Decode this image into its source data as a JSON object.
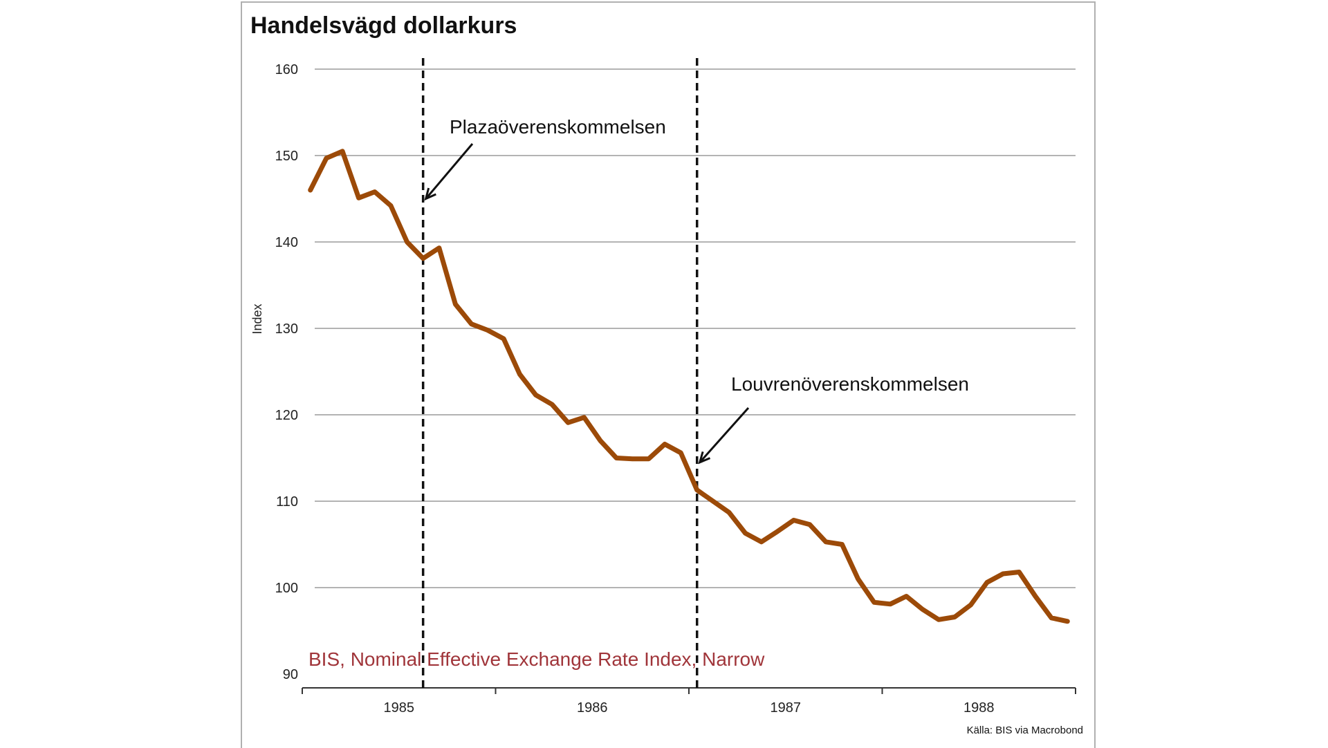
{
  "chart_data": {
    "type": "line",
    "title": "Handelsvägd dollarkurs",
    "ylabel": "Index",
    "xlabel": "",
    "ylim": [
      90,
      160
    ],
    "yticks": [
      90,
      100,
      110,
      120,
      130,
      140,
      150,
      160
    ],
    "xlim": [
      1985.0,
      1989.0
    ],
    "x_tick_labels": [
      "1985",
      "1986",
      "1987",
      "1988"
    ],
    "grid": true,
    "series": [
      {
        "name": "BIS, Nominal Effective Exchange Rate Index, Narrow",
        "color": "#9c4a08",
        "x": [
          1985.042,
          1985.125,
          1985.208,
          1985.292,
          1985.375,
          1985.458,
          1985.542,
          1985.625,
          1985.708,
          1985.792,
          1985.875,
          1985.958,
          1986.042,
          1986.125,
          1986.208,
          1986.292,
          1986.375,
          1986.458,
          1986.542,
          1986.625,
          1986.708,
          1986.792,
          1986.875,
          1986.958,
          1987.042,
          1987.125,
          1987.208,
          1987.292,
          1987.375,
          1987.458,
          1987.542,
          1987.625,
          1987.708,
          1987.792,
          1987.875,
          1987.958,
          1988.042,
          1988.125,
          1988.208,
          1988.292,
          1988.375,
          1988.458,
          1988.542,
          1988.625,
          1988.708,
          1988.792,
          1988.875,
          1988.958
        ],
        "values": [
          146.0,
          149.7,
          150.5,
          145.1,
          145.8,
          144.2,
          140.0,
          138.1,
          139.3,
          132.8,
          130.5,
          129.8,
          128.8,
          124.7,
          122.3,
          121.2,
          119.1,
          119.7,
          117.0,
          115.0,
          114.9,
          114.9,
          116.6,
          115.6,
          111.3,
          110.0,
          108.7,
          106.3,
          105.3,
          106.5,
          107.8,
          107.3,
          105.3,
          105.0,
          101.0,
          98.3,
          98.1,
          99.0,
          97.5,
          96.3,
          96.6,
          98.0,
          100.6,
          101.6,
          101.8,
          99.0,
          96.5,
          96.1
        ]
      }
    ],
    "vertical_lines": [
      1985.625,
      1987.042
    ],
    "annotations": [
      {
        "text": "Plazaöverenskommelsen",
        "x": 1985.625,
        "y": 145.0
      },
      {
        "text": "Louvrenöverenskommelsen",
        "x": 1987.042,
        "y": 114.5
      }
    ],
    "source": "Källa: BIS via Macrobond"
  }
}
